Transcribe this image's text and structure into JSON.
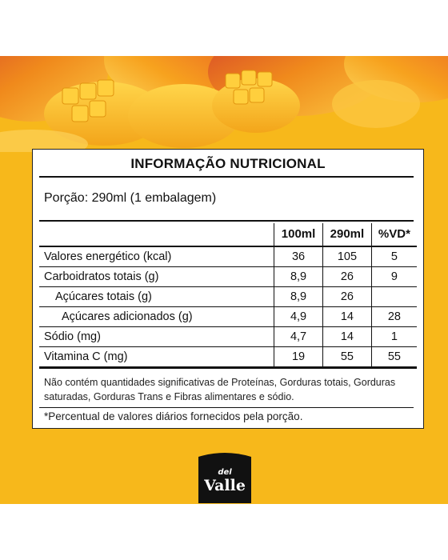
{
  "label": {
    "title": "INFORMAÇÃO NUTRICIONAL",
    "portion": "Porção: 290ml (1 embalagem)",
    "columns": [
      "",
      "100ml",
      "290ml",
      "%VD*"
    ],
    "rows": [
      {
        "name": "Valores energético (kcal)",
        "v100": "36",
        "v290": "105",
        "vd": "5"
      },
      {
        "name": "Carboidratos totais (g)",
        "v100": "8,9",
        "v290": "26",
        "vd": "9"
      },
      {
        "name": "Açúcares totais (g)",
        "v100": "8,9",
        "v290": "26",
        "vd": ""
      },
      {
        "name": "Açúcares adicionados (g)",
        "v100": "4,9",
        "v290": "14",
        "vd": "28"
      },
      {
        "name": "Sódio (mg)",
        "v100": "4,7",
        "v290": "14",
        "vd": "1"
      },
      {
        "name": "Vitamina C (mg)",
        "v100": "19",
        "v290": "55",
        "vd": "55"
      }
    ],
    "note": "Não contém quantidades significativas de Proteínas, Gorduras totais, Gorduras saturadas, Gorduras Trans e Fibras alimentares e sódio.",
    "footnote": "*Percentual de valores diários fornecidos pela porção."
  },
  "brand": {
    "logo_text_top": "del",
    "logo_text_main": "Valle"
  },
  "colors": {
    "background_band": "#f7b81b",
    "label_background": "#ffffff",
    "text": "#111111",
    "logo_black": "#111111",
    "mango_orange": "#f08a1c",
    "mango_red": "#d6452a"
  }
}
